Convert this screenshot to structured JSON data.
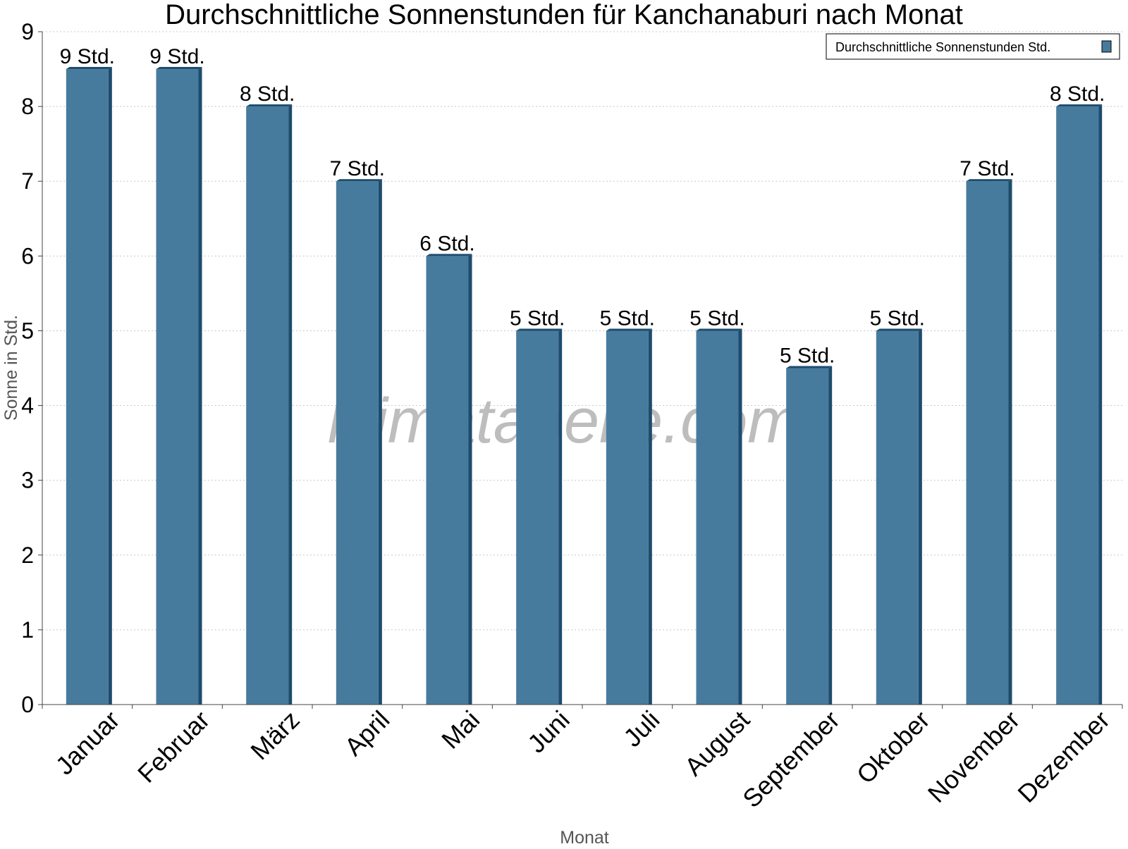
{
  "chart_data": {
    "type": "bar",
    "title": "Durchschnittliche Sonnenstunden für Kanchanaburi nach Monat",
    "xlabel": "Monat",
    "ylabel": "Sonne in Std.",
    "ylim": [
      0,
      9
    ],
    "yticks": [
      "0",
      "1",
      "2",
      "3",
      "4",
      "5",
      "6",
      "7",
      "8",
      "9"
    ],
    "grid": true,
    "legend_position": "top-right",
    "categories": [
      "Januar",
      "Februar",
      "März",
      "April",
      "Mai",
      "Juni",
      "Juli",
      "August",
      "September",
      "Oktober",
      "November",
      "Dezember"
    ],
    "series": [
      {
        "name": "Durchschnittliche Sonnenstunden Std.",
        "values": [
          8.5,
          8.5,
          8.0,
          7.0,
          6.0,
          5.0,
          5.0,
          5.0,
          4.5,
          5.0,
          7.0,
          8.0
        ],
        "labels": [
          "9 Std.",
          "9 Std.",
          "8 Std.",
          "7 Std.",
          "6 Std.",
          "5 Std.",
          "5 Std.",
          "5 Std.",
          "5 Std.",
          "5 Std.",
          "7 Std.",
          "8 Std."
        ],
        "color": "#477b9e",
        "shade_color": "#1d4c6d"
      }
    ],
    "watermark": "klimatabelle.com"
  }
}
